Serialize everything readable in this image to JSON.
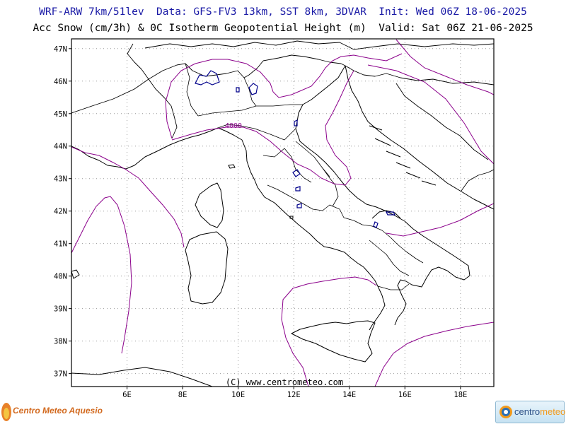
{
  "header": {
    "line1": "WRF-ARW 7km/51lev  Data: GFS-FV3 13km, SST 8km, 3DVAR  Init: Wed 06Z 18-06-2025",
    "line2": "Acc Snow (cm/3h) & 0C Isotherm Geopotential Height (m)  Valid: Sat 06Z 21-06-2025"
  },
  "map": {
    "lat_labels": [
      "47N",
      "46N",
      "45N",
      "44N",
      "43N",
      "42N",
      "41N",
      "40N",
      "39N",
      "38N",
      "37N"
    ],
    "lon_labels": [
      "6E",
      "8E",
      "10E",
      "12E",
      "14E",
      "16E",
      "18E"
    ],
    "lat_range": [
      36.6,
      47.3
    ],
    "lon_range": [
      4.0,
      19.2
    ],
    "grid": true,
    "contour_label": "4000",
    "copyright": "(C) www.centrometeo.com",
    "colors": {
      "coastline": "#000000",
      "isotherm": "#8b008b",
      "snow": "#00008b",
      "grid": "#999999"
    }
  },
  "logos": {
    "left": "Centro Meteo Aquesio",
    "right_a": "centro",
    "right_b": "meteo"
  }
}
